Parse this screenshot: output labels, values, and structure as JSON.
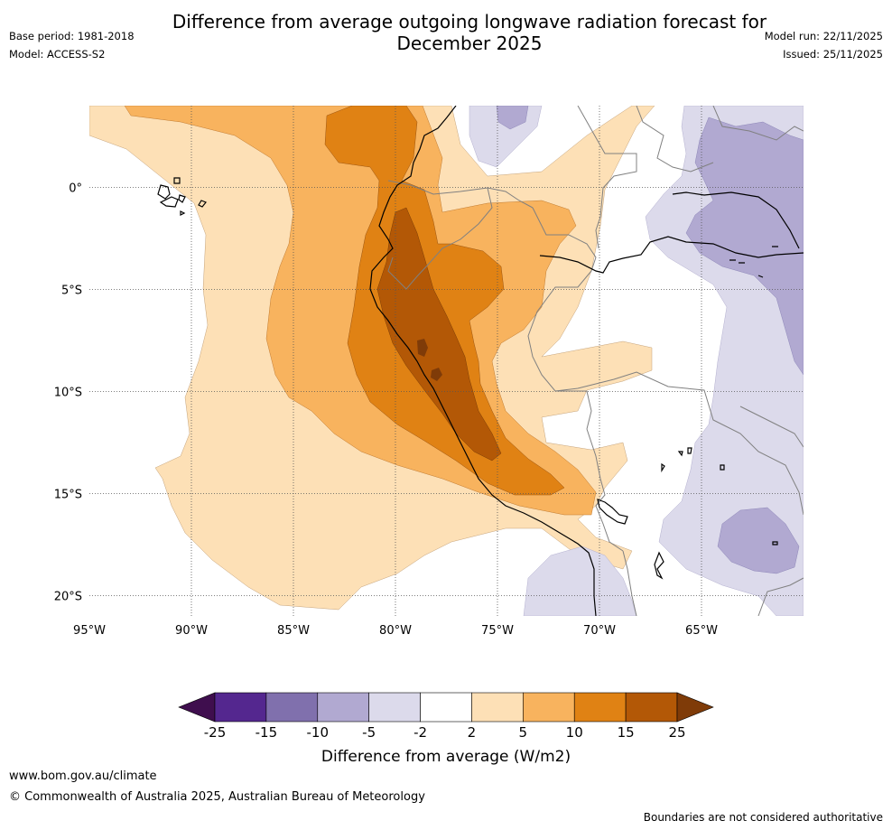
{
  "header": {
    "title": "Difference from average outgoing longwave radiation forecast for December 2025",
    "base_period": "Base period: 1981-2018",
    "model": "Model: ACCESS-S2",
    "model_run": "Model run: 22/11/2025",
    "issued": "Issued: 25/11/2025"
  },
  "map": {
    "lon_range": [
      -95,
      -60
    ],
    "lat_range": [
      -21,
      4
    ],
    "lon_ticks": [
      "95°W",
      "90°W",
      "85°W",
      "80°W",
      "75°W",
      "70°W",
      "65°W"
    ],
    "lat_ticks": [
      "0°",
      "5°S",
      "10°S",
      "15°S",
      "20°S"
    ],
    "gridline_color": "#555555",
    "coastline_color": "#000000",
    "border_color": "#808080"
  },
  "colorbar": {
    "title": "Difference from average (W/m2)",
    "ticks": [
      "-25",
      "-15",
      "-10",
      "-5",
      "-2",
      "2",
      "5",
      "10",
      "15",
      "25"
    ],
    "colors": [
      "#3f0e4e",
      "#54278f",
      "#8070ad",
      "#b1a9d1",
      "#dcdaeb",
      "#ffffff",
      "#fde0b6",
      "#f8b35e",
      "#e08214",
      "#b35806",
      "#7f3b08"
    ]
  },
  "footer": {
    "website": "www.bom.gov.au/climate",
    "copyright": "© Commonwealth of Australia 2025, Australian Bureau of Meteorology",
    "disclaimer": "Boundaries are not considered authoritative"
  }
}
